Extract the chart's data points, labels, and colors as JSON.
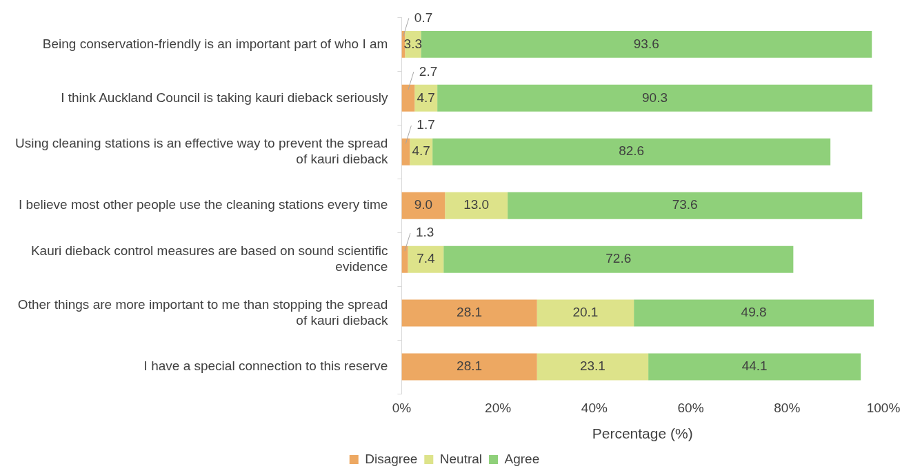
{
  "chart_data": {
    "type": "bar",
    "orientation": "horizontal",
    "stacked": true,
    "categories": [
      "Being conservation-friendly is an important part of who I am",
      "I think Auckland Council is taking kauri dieback seriously",
      "Using cleaning stations is an effective way to prevent the spread of kauri dieback",
      "I believe most other people use the cleaning stations every time",
      "Kauri dieback control measures are based on sound scientific evidence",
      "Other things are more important to me than stopping the spread of kauri dieback",
      "I have a special connection to this reserve"
    ],
    "series": [
      {
        "name": "Disagree",
        "color": "#eda862",
        "values": [
          0.7,
          2.7,
          1.7,
          9.0,
          1.3,
          28.1,
          28.1
        ],
        "value_labels": [
          "0.7",
          "2.7",
          "1.7",
          "9.0",
          "1.3",
          "28.1",
          "28.1"
        ]
      },
      {
        "name": "Neutral",
        "color": "#dde38a",
        "values": [
          3.3,
          4.7,
          4.7,
          13.0,
          7.4,
          20.1,
          23.1
        ],
        "value_labels": [
          "3.3",
          "4.7",
          "4.7",
          "13.0",
          "7.4",
          "20.1",
          "23.1"
        ]
      },
      {
        "name": "Agree",
        "color": "#8fd07a",
        "values": [
          93.6,
          90.3,
          82.6,
          73.6,
          72.6,
          49.8,
          44.1
        ],
        "value_labels": [
          "93.6",
          "90.3",
          "82.6",
          "73.6",
          "72.6",
          "49.8",
          "44.1"
        ]
      }
    ],
    "xlabel": "Percentage (%)",
    "xlim": [
      0,
      100
    ],
    "xticks": [
      {
        "value": 0,
        "label": "0%"
      },
      {
        "value": 20,
        "label": "20%"
      },
      {
        "value": 40,
        "label": "40%"
      },
      {
        "value": 60,
        "label": "60%"
      },
      {
        "value": 80,
        "label": "80%"
      },
      {
        "value": 100,
        "label": "100%"
      }
    ],
    "legend": "bottom",
    "grid": false
  }
}
